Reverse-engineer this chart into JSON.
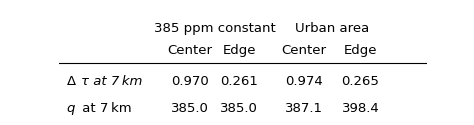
{
  "col_headers_row1_left": "385 ppm constant",
  "col_headers_row1_right": "Urban area",
  "col_headers_row2": [
    "Center",
    "Edge",
    "Center",
    "Edge"
  ],
  "rows": [
    {
      "label_prefix": "Δ",
      "label_suffix": "τ at 7 km",
      "values": [
        "0.970",
        "0.261",
        "0.974",
        "0.265"
      ]
    },
    {
      "label_prefix": "q",
      "label_suffix": " at 7 km",
      "values": [
        "385.0",
        "385.0",
        "387.1",
        "398.4"
      ]
    }
  ],
  "background_color": "#ffffff",
  "font_size": 9.5
}
